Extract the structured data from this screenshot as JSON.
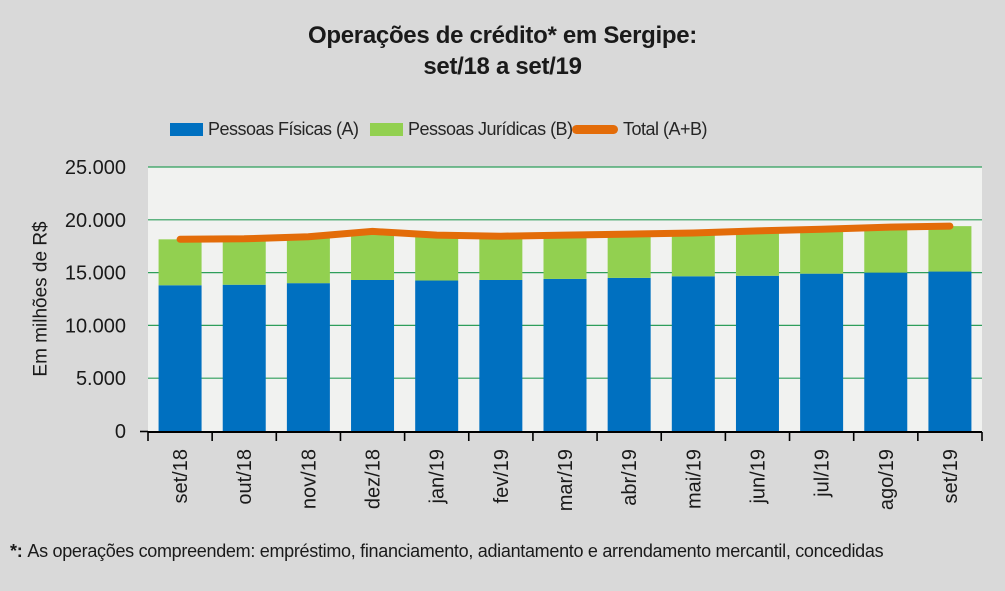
{
  "title": {
    "line1": "Operações de crédito* em Sergipe:",
    "line2": "set/18 a set/19"
  },
  "colors": {
    "background": "#D9D9D9",
    "plot_background": "#F1F2F0",
    "gridline": "#2E9E5B",
    "axis": "#000000",
    "text": "#1A1A1A",
    "bar_pessoas_fisicas": "#0070C0",
    "bar_pessoas_juridicas": "#92D050",
    "line_total": "#E36C09"
  },
  "chart_data": {
    "type": "bar",
    "subtype": "stacked-bars-with-total-line",
    "title": "Operações de crédito* em Sergipe: set/18 a set/19",
    "xlabel": "",
    "ylabel": "Em milhões de R$",
    "ylim": [
      0,
      25000
    ],
    "ytick_step": 5000,
    "ytick_labels": [
      "0",
      "5.000",
      "10.000",
      "15.000",
      "20.000",
      "25.000"
    ],
    "grid": "horizontal green lines, plot area light, gridlines behind bars",
    "legend_position": "top",
    "categories": [
      "set/18",
      "out/18",
      "nov/18",
      "dez/18",
      "jan/19",
      "fev/19",
      "mar/19",
      "abr/19",
      "mai/19",
      "jun/19",
      "jul/19",
      "ago/19",
      "set/19"
    ],
    "series": [
      {
        "name": "Pessoas Físicas (A)",
        "type": "bar",
        "stacked": true,
        "color": "#0070C0",
        "values": [
          13800,
          13850,
          14000,
          14300,
          14250,
          14300,
          14400,
          14500,
          14650,
          14700,
          14900,
          15000,
          15100
        ]
      },
      {
        "name": "Pessoas Jurídicas (B)",
        "type": "bar",
        "stacked": true,
        "color": "#92D050",
        "values": [
          4350,
          4350,
          4400,
          4600,
          4300,
          4150,
          4150,
          4150,
          4100,
          4250,
          4200,
          4300,
          4300
        ]
      },
      {
        "name": "Total (A+B)",
        "type": "line",
        "color": "#E36C09",
        "values": [
          18150,
          18200,
          18400,
          18900,
          18550,
          18450,
          18550,
          18650,
          18750,
          18950,
          19100,
          19300,
          19400
        ]
      }
    ]
  },
  "footnote": {
    "prefix": "*:",
    "text": "As operações compreendem: empréstimo, financiamento, adiantamento e arrendamento mercantil, concedidas"
  }
}
